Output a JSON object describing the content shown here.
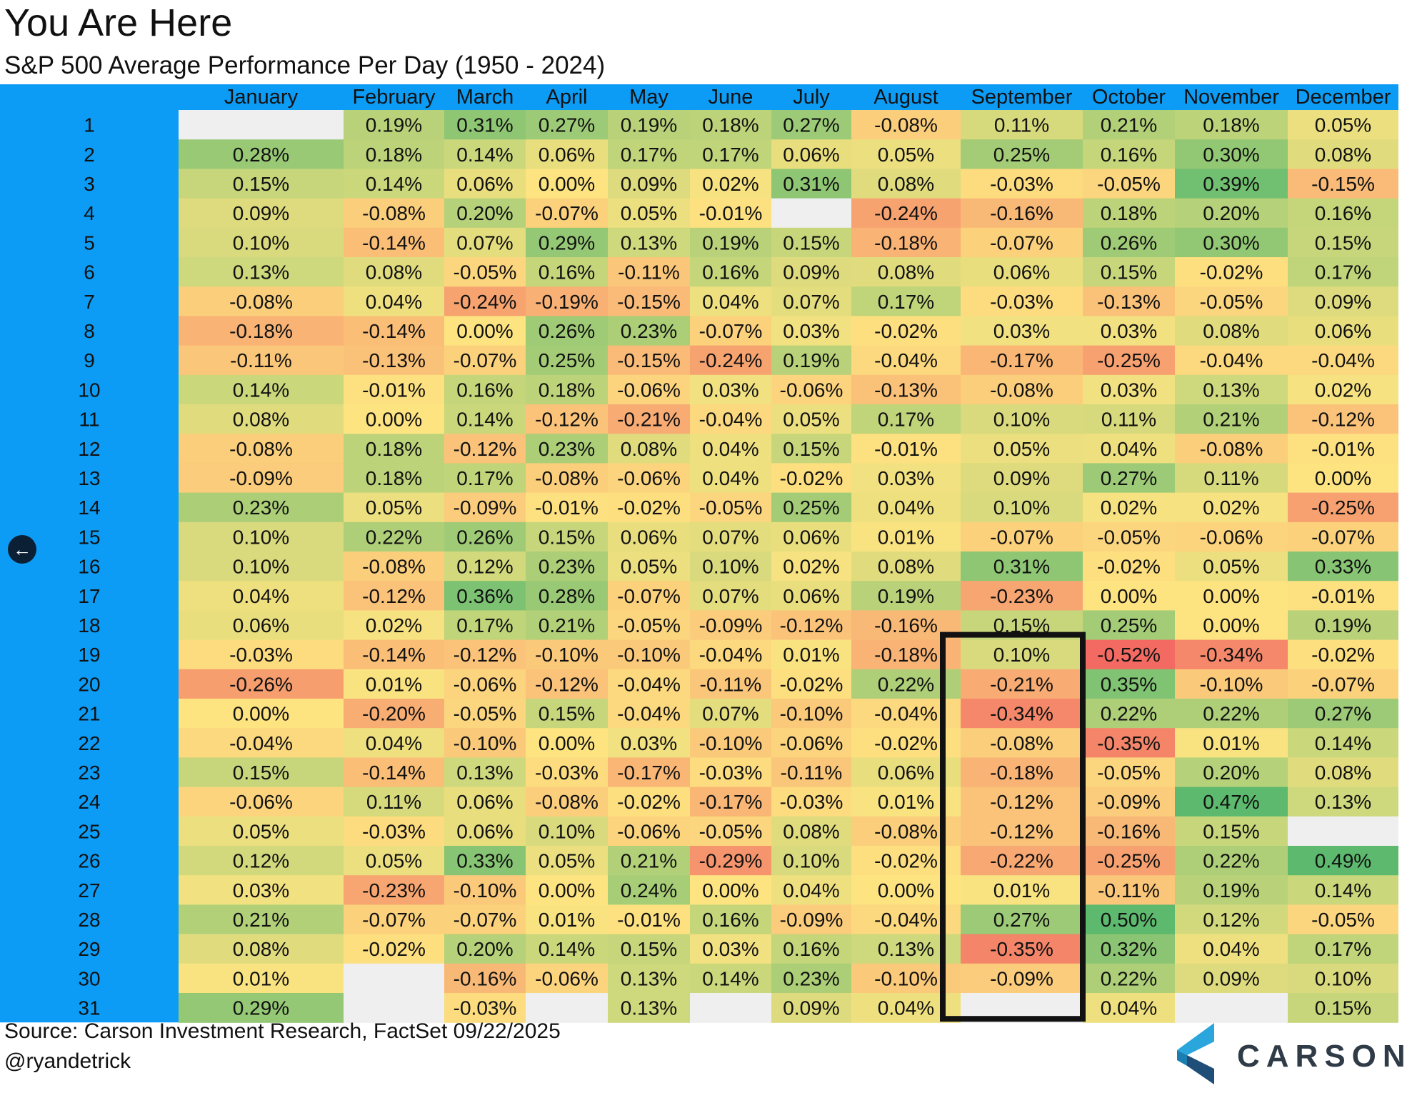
{
  "title": "You Are Here",
  "subtitle": "S&P 500 Average Performance Per Day (1950 - 2024)",
  "source": "Source: Carson Investment Research, FactSet 09/22/2025",
  "handle": "@ryandetrick",
  "logo_text": "CARSON",
  "icons": {
    "nav_back": "arrow-left-icon",
    "logo_mark": "carson-logo-icon"
  },
  "colors": {
    "header_bg": "#0c9cf5",
    "negative": "#f26a62",
    "neutral": "#fde481",
    "positive": "#5cb96e",
    "missing": "#efefef",
    "highlight_border": "#111111"
  },
  "chart_data": {
    "type": "heatmap",
    "title": "S&P 500 Average Performance Per Day (1950 - 2024)",
    "columns": [
      "January",
      "February",
      "March",
      "April",
      "May",
      "June",
      "July",
      "August",
      "September",
      "October",
      "November",
      "December"
    ],
    "rows": [
      "1",
      "2",
      "3",
      "4",
      "5",
      "6",
      "7",
      "8",
      "9",
      "10",
      "11",
      "12",
      "13",
      "14",
      "15",
      "16",
      "17",
      "18",
      "19",
      "20",
      "21",
      "22",
      "23",
      "24",
      "25",
      "26",
      "27",
      "28",
      "29",
      "30",
      "31"
    ],
    "unit": "%",
    "values": [
      [
        null,
        "0.19%",
        "0.31%",
        "0.27%",
        "0.19%",
        "0.18%",
        "0.27%",
        "-0.08%",
        "0.11%",
        "0.21%",
        "0.18%",
        "0.05%"
      ],
      [
        "0.28%",
        "0.18%",
        "0.14%",
        "0.06%",
        "0.17%",
        "0.17%",
        "0.06%",
        "0.05%",
        "0.25%",
        "0.16%",
        "0.30%",
        "0.08%"
      ],
      [
        "0.15%",
        "0.14%",
        "0.06%",
        "0.00%",
        "0.09%",
        "0.02%",
        "0.31%",
        "0.08%",
        "-0.03%",
        "-0.05%",
        "0.39%",
        "-0.15%"
      ],
      [
        "0.09%",
        "-0.08%",
        "0.20%",
        "-0.07%",
        "0.05%",
        "-0.01%",
        null,
        "-0.24%",
        "-0.16%",
        "0.18%",
        "0.20%",
        "0.16%"
      ],
      [
        "0.10%",
        "-0.14%",
        "0.07%",
        "0.29%",
        "0.13%",
        "0.19%",
        "0.15%",
        "-0.18%",
        "-0.07%",
        "0.26%",
        "0.30%",
        "0.15%"
      ],
      [
        "0.13%",
        "0.08%",
        "-0.05%",
        "0.16%",
        "-0.11%",
        "0.16%",
        "0.09%",
        "0.08%",
        "0.06%",
        "0.15%",
        "-0.02%",
        "0.17%"
      ],
      [
        "-0.08%",
        "0.04%",
        "-0.24%",
        "-0.19%",
        "-0.15%",
        "0.04%",
        "0.07%",
        "0.17%",
        "-0.03%",
        "-0.13%",
        "-0.05%",
        "0.09%"
      ],
      [
        "-0.18%",
        "-0.14%",
        "0.00%",
        "0.26%",
        "0.23%",
        "-0.07%",
        "0.03%",
        "-0.02%",
        "0.03%",
        "0.03%",
        "0.08%",
        "0.06%"
      ],
      [
        "-0.11%",
        "-0.13%",
        "-0.07%",
        "0.25%",
        "-0.15%",
        "-0.24%",
        "0.19%",
        "-0.04%",
        "-0.17%",
        "-0.25%",
        "-0.04%",
        "-0.04%"
      ],
      [
        "0.14%",
        "-0.01%",
        "0.16%",
        "0.18%",
        "-0.06%",
        "0.03%",
        "-0.06%",
        "-0.13%",
        "-0.08%",
        "0.03%",
        "0.13%",
        "0.02%"
      ],
      [
        "0.08%",
        "0.00%",
        "0.14%",
        "-0.12%",
        "-0.21%",
        "-0.04%",
        "0.05%",
        "0.17%",
        "0.10%",
        "0.11%",
        "0.21%",
        "-0.12%"
      ],
      [
        "-0.08%",
        "0.18%",
        "-0.12%",
        "0.23%",
        "0.08%",
        "0.04%",
        "0.15%",
        "-0.01%",
        "0.05%",
        "0.04%",
        "-0.08%",
        "-0.01%"
      ],
      [
        "-0.09%",
        "0.18%",
        "0.17%",
        "-0.08%",
        "-0.06%",
        "0.04%",
        "-0.02%",
        "0.03%",
        "0.09%",
        "0.27%",
        "0.11%",
        "0.00%"
      ],
      [
        "0.23%",
        "0.05%",
        "-0.09%",
        "-0.01%",
        "-0.02%",
        "-0.05%",
        "0.25%",
        "0.04%",
        "0.10%",
        "0.02%",
        "0.02%",
        "-0.25%"
      ],
      [
        "0.10%",
        "0.22%",
        "0.26%",
        "0.15%",
        "0.06%",
        "0.07%",
        "0.06%",
        "0.01%",
        "-0.07%",
        "-0.05%",
        "-0.06%",
        "-0.07%"
      ],
      [
        "0.10%",
        "-0.08%",
        "0.12%",
        "0.23%",
        "0.05%",
        "0.10%",
        "0.02%",
        "0.08%",
        "0.31%",
        "-0.02%",
        "0.05%",
        "0.33%"
      ],
      [
        "0.04%",
        "-0.12%",
        "0.36%",
        "0.28%",
        "-0.07%",
        "0.07%",
        "0.06%",
        "0.19%",
        "-0.23%",
        "0.00%",
        "0.00%",
        "-0.01%"
      ],
      [
        "0.06%",
        "0.02%",
        "0.17%",
        "0.21%",
        "-0.05%",
        "-0.09%",
        "-0.12%",
        "-0.16%",
        "0.15%",
        "0.25%",
        "0.00%",
        "0.19%"
      ],
      [
        "-0.03%",
        "-0.14%",
        "-0.12%",
        "-0.10%",
        "-0.10%",
        "-0.04%",
        "0.01%",
        "-0.18%",
        "0.10%",
        "-0.52%",
        "-0.34%",
        "-0.02%"
      ],
      [
        "-0.26%",
        "0.01%",
        "-0.06%",
        "-0.12%",
        "-0.04%",
        "-0.11%",
        "-0.02%",
        "0.22%",
        "-0.21%",
        "0.35%",
        "-0.10%",
        "-0.07%"
      ],
      [
        "0.00%",
        "-0.20%",
        "-0.05%",
        "0.15%",
        "-0.04%",
        "0.07%",
        "-0.10%",
        "-0.04%",
        "-0.34%",
        "0.22%",
        "0.22%",
        "0.27%"
      ],
      [
        "-0.04%",
        "0.04%",
        "-0.10%",
        "0.00%",
        "0.03%",
        "-0.10%",
        "-0.06%",
        "-0.02%",
        "-0.08%",
        "-0.35%",
        "0.01%",
        "0.14%"
      ],
      [
        "0.15%",
        "-0.14%",
        "0.13%",
        "-0.03%",
        "-0.17%",
        "-0.03%",
        "-0.11%",
        "0.06%",
        "-0.18%",
        "-0.05%",
        "0.20%",
        "0.08%"
      ],
      [
        "-0.06%",
        "0.11%",
        "0.06%",
        "-0.08%",
        "-0.02%",
        "-0.17%",
        "-0.03%",
        "0.01%",
        "-0.12%",
        "-0.09%",
        "0.47%",
        "0.13%"
      ],
      [
        "0.05%",
        "-0.03%",
        "0.06%",
        "0.10%",
        "-0.06%",
        "-0.05%",
        "0.08%",
        "-0.08%",
        "-0.12%",
        "-0.16%",
        "0.15%",
        null
      ],
      [
        "0.12%",
        "0.05%",
        "0.33%",
        "0.05%",
        "0.21%",
        "-0.29%",
        "0.10%",
        "-0.02%",
        "-0.22%",
        "-0.25%",
        "0.22%",
        "0.49%"
      ],
      [
        "0.03%",
        "-0.23%",
        "-0.10%",
        "0.00%",
        "0.24%",
        "0.00%",
        "0.04%",
        "0.00%",
        "0.01%",
        "-0.11%",
        "0.19%",
        "0.14%"
      ],
      [
        "0.21%",
        "-0.07%",
        "-0.07%",
        "0.01%",
        "-0.01%",
        "0.16%",
        "-0.09%",
        "-0.04%",
        "0.27%",
        "0.50%",
        "0.12%",
        "-0.05%"
      ],
      [
        "0.08%",
        "-0.02%",
        "0.20%",
        "0.14%",
        "0.15%",
        "0.03%",
        "0.16%",
        "0.13%",
        "-0.35%",
        "0.32%",
        "0.04%",
        "0.17%"
      ],
      [
        "0.01%",
        null,
        "-0.16%",
        "-0.06%",
        "0.13%",
        "0.14%",
        "0.23%",
        "-0.10%",
        "-0.09%",
        "0.22%",
        "0.09%",
        "0.10%"
      ],
      [
        "0.29%",
        null,
        "-0.03%",
        null,
        "0.13%",
        null,
        "0.09%",
        "0.04%",
        null,
        "0.04%",
        null,
        "0.15%"
      ]
    ],
    "highlight": {
      "column": "September",
      "from_row": "19",
      "to_row": "31"
    }
  }
}
